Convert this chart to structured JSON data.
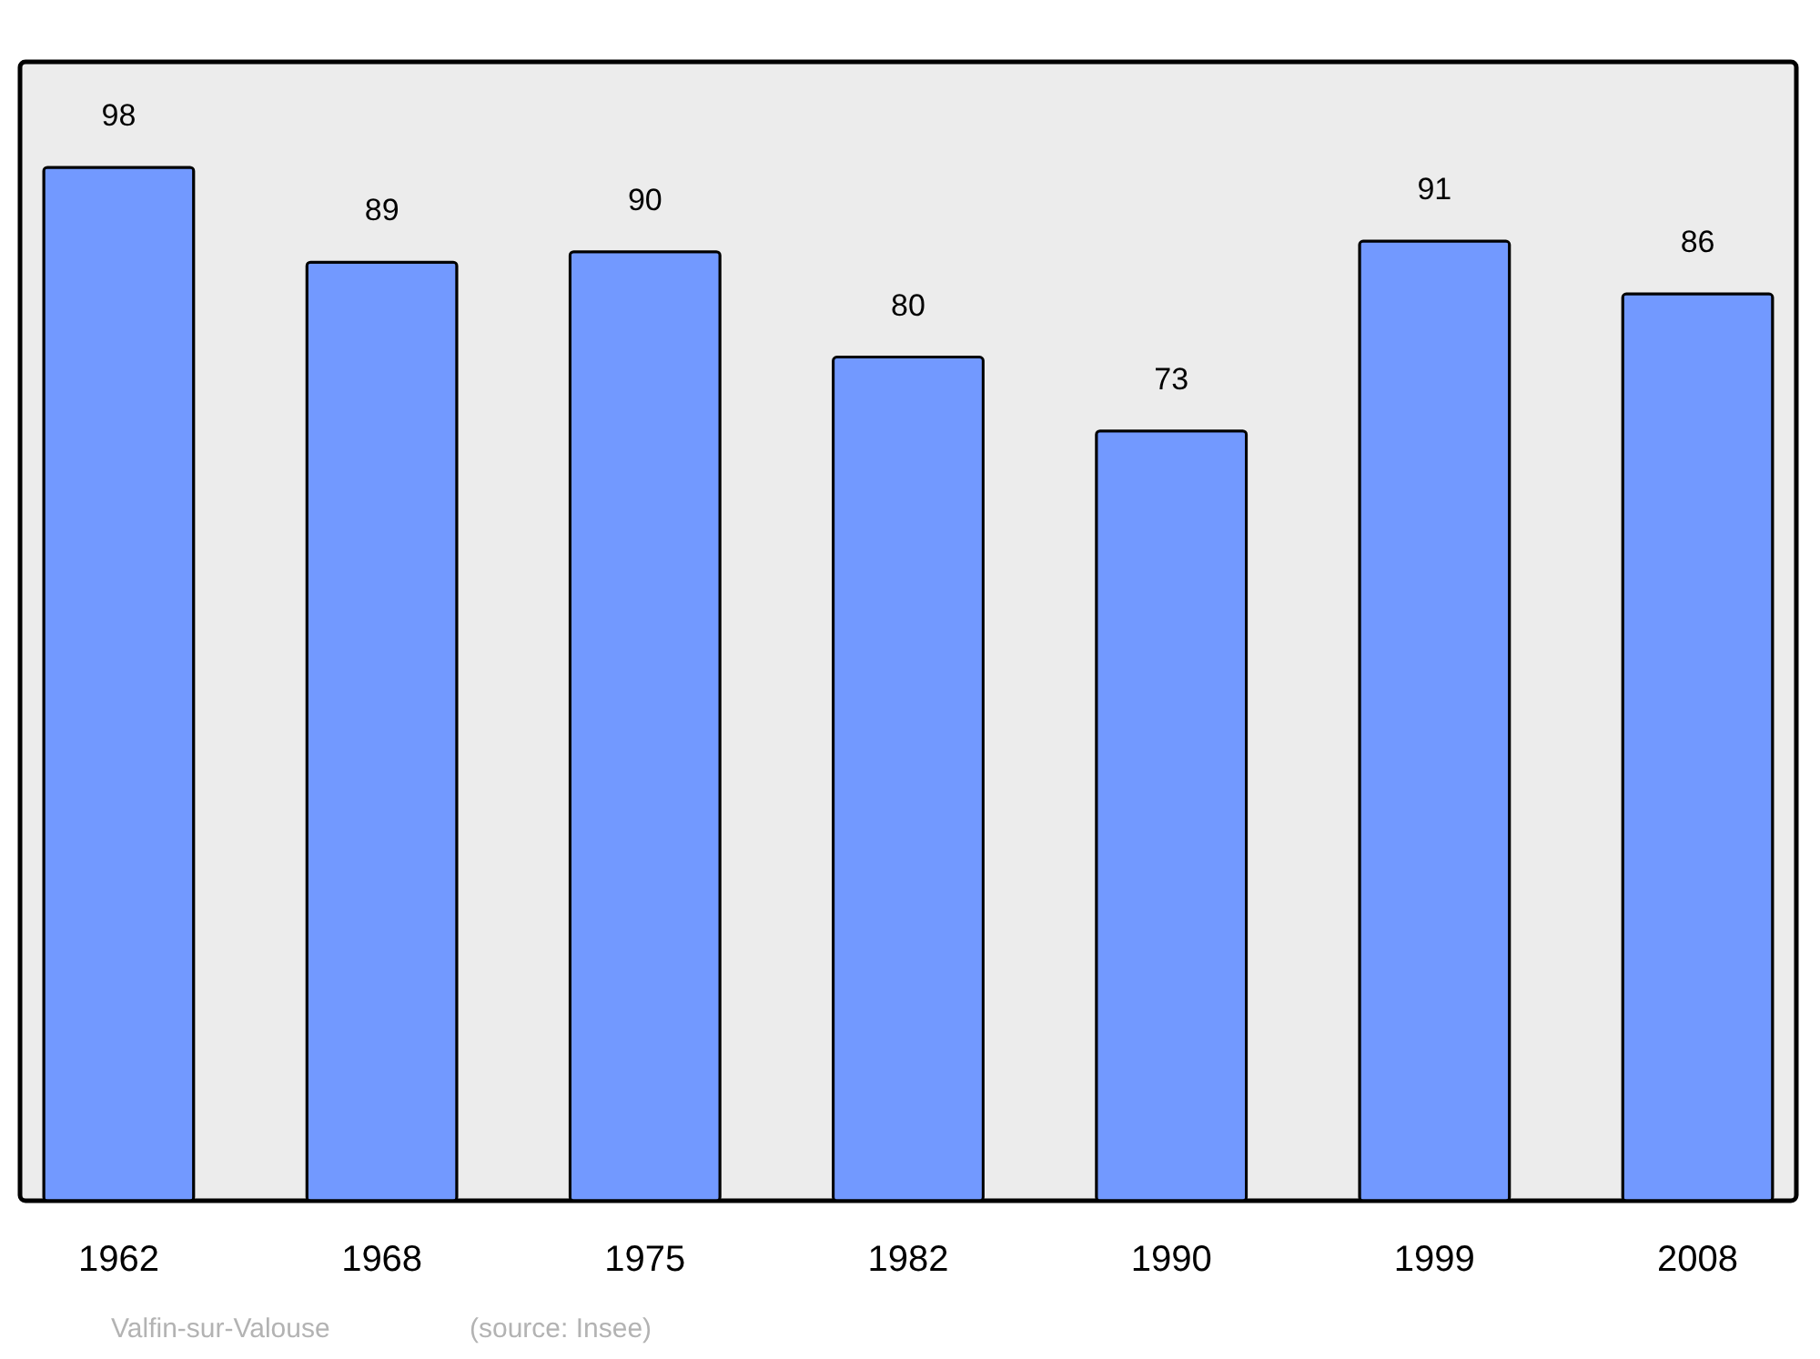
{
  "chart_data": {
    "type": "bar",
    "categories": [
      "1962",
      "1968",
      "1975",
      "1982",
      "1990",
      "1999",
      "2008"
    ],
    "values": [
      98,
      89,
      90,
      80,
      73,
      91,
      86
    ],
    "color": "#7299ff",
    "ylim": [
      0,
      108
    ],
    "data_labels": true,
    "annotations": [
      "Valfin-sur-Valouse",
      "(source: Insee)"
    ]
  }
}
